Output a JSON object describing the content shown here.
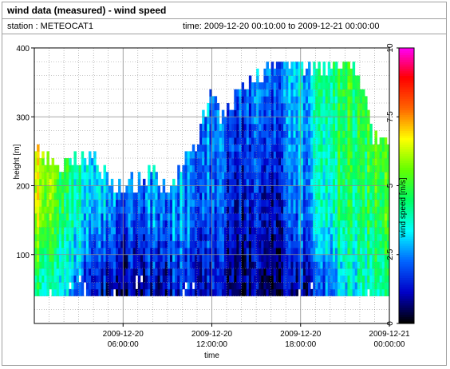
{
  "header": {
    "title": "wind data (measured) - wind speed",
    "station": "station : METEOCAT1",
    "time_range": "time: 2009-12-20 00:10:00 to 2009-12-21 00:00:00"
  },
  "colors": {
    "background": "#ffffff",
    "grid": "#8c8c8c",
    "colormap": [
      "#000000",
      "#0000c8",
      "#0064ff",
      "#00ffff",
      "#00ff64",
      "#64ff00",
      "#ffff00",
      "#ff6400",
      "#ff0000",
      "#ff00ff"
    ]
  },
  "chart_data": {
    "type": "heatmap",
    "xlabel": "time",
    "ylabel": "height [m]",
    "colorbar_label": "wind speed [m/s]",
    "x_ticks": [
      {
        "time": "2009-12-20 06:00:00",
        "line1": "2009-12-20",
        "line2": "06:00:00"
      },
      {
        "time": "2009-12-20 12:00:00",
        "line1": "2009-12-20",
        "line2": "12:00:00"
      },
      {
        "time": "2009-12-20 18:00:00",
        "line1": "2009-12-20",
        "line2": "18:00:00"
      },
      {
        "time": "2009-12-21 00:00:00",
        "line1": "2009-12-21",
        "line2": "00:00:00"
      }
    ],
    "xlim": [
      "2009-12-20 00:00:00",
      "2009-12-21 00:00:00"
    ],
    "ylim": [
      0,
      400
    ],
    "y_ticks": [
      100,
      200,
      300,
      400
    ],
    "colorbar_range": [
      0,
      10
    ],
    "colorbar_ticks": [
      "0",
      "2.5",
      "5",
      "7.5",
      "10"
    ],
    "grid": true,
    "height_bins_m": [
      40,
      380
    ],
    "time_bin_minutes": 10,
    "data_top_height_m": [
      [
        0,
        250
      ],
      [
        1,
        245
      ],
      [
        2,
        235
      ],
      [
        3,
        240
      ],
      [
        4,
        250
      ],
      [
        5,
        215
      ],
      [
        6,
        200
      ],
      [
        7,
        210
      ],
      [
        8,
        225
      ],
      [
        9,
        200
      ],
      [
        10,
        230
      ],
      [
        11,
        270
      ],
      [
        12,
        330
      ],
      [
        13,
        300
      ],
      [
        14,
        345
      ],
      [
        15,
        360
      ],
      [
        16,
        375
      ],
      [
        17,
        380
      ],
      [
        18,
        380
      ],
      [
        19,
        380
      ],
      [
        20,
        380
      ],
      [
        21,
        380
      ],
      [
        22,
        375
      ],
      [
        23,
        280
      ],
      [
        24,
        260
      ]
    ],
    "wind_speed_profile": [
      {
        "time_h": 0,
        "low_m_s": 4.2,
        "mid_m_s": 6.5,
        "high_m_s": 7.5
      },
      {
        "time_h": 2,
        "low_m_s": 3.0,
        "mid_m_s": 4.5,
        "high_m_s": 5.0
      },
      {
        "time_h": 4,
        "low_m_s": 1.5,
        "mid_m_s": 3.0,
        "high_m_s": 4.0
      },
      {
        "time_h": 5,
        "low_m_s": 1.2,
        "mid_m_s": 2.8,
        "high_m_s": 4.5
      },
      {
        "time_h": 6,
        "low_m_s": 1.0,
        "mid_m_s": 2.2,
        "high_m_s": 4.0
      },
      {
        "time_h": 7,
        "low_m_s": 0.8,
        "mid_m_s": 2.0,
        "high_m_s": 3.2
      },
      {
        "time_h": 8,
        "low_m_s": 1.0,
        "mid_m_s": 2.5,
        "high_m_s": 3.0
      },
      {
        "time_h": 10,
        "low_m_s": 1.5,
        "mid_m_s": 2.5,
        "high_m_s": 2.8
      },
      {
        "time_h": 12,
        "low_m_s": 1.5,
        "mid_m_s": 2.2,
        "high_m_s": 2.8
      },
      {
        "time_h": 13,
        "low_m_s": 1.0,
        "mid_m_s": 1.8,
        "high_m_s": 2.5
      },
      {
        "time_h": 15,
        "low_m_s": 0.5,
        "mid_m_s": 1.0,
        "high_m_s": 2.2
      },
      {
        "time_h": 16,
        "low_m_s": 0.5,
        "mid_m_s": 1.2,
        "high_m_s": 2.5
      },
      {
        "time_h": 17,
        "low_m_s": 1.0,
        "mid_m_s": 1.8,
        "high_m_s": 2.8
      },
      {
        "time_h": 18,
        "low_m_s": 1.0,
        "mid_m_s": 2.2,
        "high_m_s": 3.0
      },
      {
        "time_h": 19,
        "low_m_s": 1.5,
        "mid_m_s": 3.0,
        "high_m_s": 3.5
      },
      {
        "time_h": 20,
        "low_m_s": 2.2,
        "mid_m_s": 4.0,
        "high_m_s": 4.5
      },
      {
        "time_h": 21,
        "low_m_s": 3.2,
        "mid_m_s": 4.5,
        "high_m_s": 5.0
      },
      {
        "time_h": 22,
        "low_m_s": 3.5,
        "mid_m_s": 4.2,
        "high_m_s": 5.0
      },
      {
        "time_h": 23,
        "low_m_s": 4.0,
        "mid_m_s": 4.8,
        "high_m_s": 5.5
      },
      {
        "time_h": 24,
        "low_m_s": 4.5,
        "mid_m_s": 5.5,
        "high_m_s": 6.0
      }
    ]
  }
}
